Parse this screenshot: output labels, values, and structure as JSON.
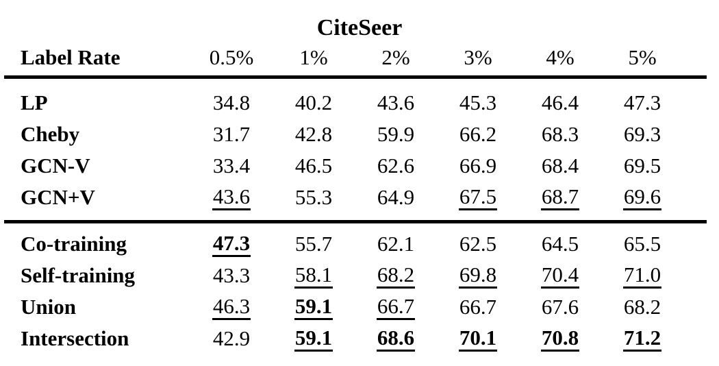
{
  "title": "CiteSeer",
  "colors": {
    "text": "#000000",
    "background": "#ffffff"
  },
  "table": {
    "header": {
      "label": "Label Rate",
      "cols": [
        "0.5%",
        "1%",
        "2%",
        "3%",
        "4%",
        "5%"
      ]
    },
    "sections": [
      {
        "rows": [
          {
            "label": "LP",
            "values": [
              "34.8",
              "40.2",
              "43.6",
              "45.3",
              "46.4",
              "47.3"
            ]
          },
          {
            "label": "Cheby",
            "values": [
              "31.7",
              "42.8",
              "59.9",
              "66.2",
              "68.3",
              "69.3"
            ]
          },
          {
            "label": "GCN-V",
            "values": [
              "33.4",
              "46.5",
              "62.6",
              "66.9",
              "68.4",
              "69.5"
            ]
          },
          {
            "label": "GCN+V",
            "values": [
              "43.6",
              "55.3",
              "64.9",
              "67.5",
              "68.7",
              "69.6"
            ]
          }
        ]
      },
      {
        "rows": [
          {
            "label": "Co-training",
            "values": [
              "47.3",
              "55.7",
              "62.1",
              "62.5",
              "64.5",
              "65.5"
            ]
          },
          {
            "label": "Self-training",
            "values": [
              "43.3",
              "58.1",
              "68.2",
              "69.8",
              "70.4",
              "71.0"
            ]
          },
          {
            "label": "Union",
            "values": [
              "46.3",
              "59.1",
              "66.7",
              "66.7",
              "67.6",
              "68.2"
            ]
          },
          {
            "label": "Intersection",
            "values": [
              "42.9",
              "59.1",
              "68.6",
              "70.1",
              "70.8",
              "71.2"
            ]
          }
        ]
      }
    ],
    "emphasis": {
      "underlined": [
        "GCN+V:0.5%",
        "GCN+V:3%",
        "GCN+V:4%",
        "GCN+V:5%",
        "Self-training:1%",
        "Self-training:2%",
        "Self-training:3%",
        "Self-training:4%",
        "Self-training:5%",
        "Union:0.5%",
        "Union:2%"
      ],
      "bold_underlined": [
        "Co-training:0.5%",
        "Union:1%",
        "Intersection:1%",
        "Intersection:2%",
        "Intersection:3%",
        "Intersection:4%",
        "Intersection:5%"
      ]
    }
  }
}
